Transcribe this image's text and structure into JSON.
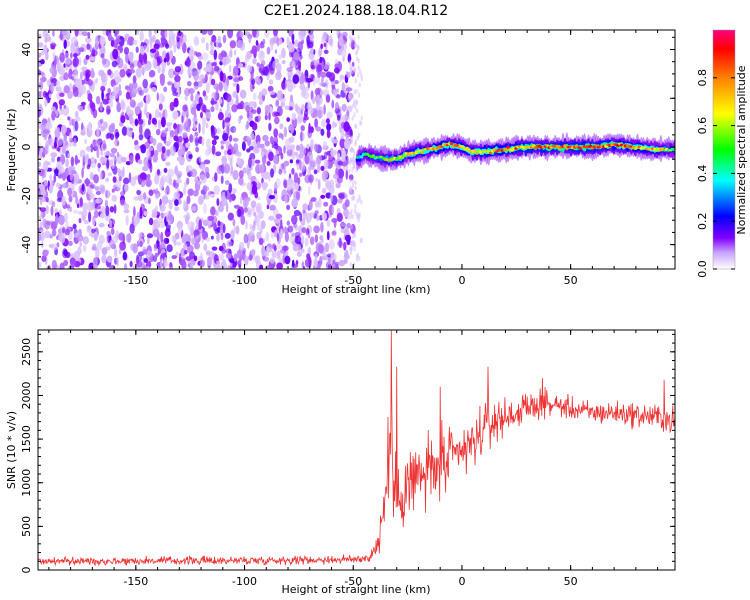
{
  "title": "C2E1.2024.188.18.04.R12",
  "chart_data": [
    {
      "type": "heatmap",
      "xlabel": "Height of straight line (km)",
      "ylabel": "Frequency (Hz)",
      "xlim": [
        -195,
        98
      ],
      "ylim": [
        -50,
        48
      ],
      "xticks": [
        -150,
        -100,
        -50,
        0,
        50
      ],
      "yticks": [
        -40,
        -20,
        0,
        20,
        40
      ],
      "colorbar": {
        "label": "Normalized spectral amplitude",
        "range": [
          0.0,
          1.0
        ],
        "ticks": [
          0.0,
          0.2,
          0.4,
          0.6,
          0.8
        ],
        "colormap": [
          "#ffffff",
          "#8000ff",
          "#0000ff",
          "#00ffff",
          "#00ff00",
          "#ffff00",
          "#ff8000",
          "#ff0000",
          "#ff0080"
        ]
      },
      "noise_region_x": [
        -195,
        -50
      ],
      "signal_track": {
        "x": [
          -48,
          -45,
          -40,
          -35,
          -30,
          -25,
          -20,
          -15,
          -10,
          -5,
          0,
          5,
          10,
          20,
          30,
          40,
          50,
          60,
          70,
          80,
          90,
          98
        ],
        "frequency": [
          -5,
          -3,
          -4,
          -5,
          -5,
          -3,
          -2,
          -1,
          0,
          1,
          0,
          -2,
          -2,
          -1,
          0,
          0,
          0,
          0,
          1,
          0,
          -1,
          -1
        ],
        "peak_amplitude": [
          0.45,
          0.5,
          0.55,
          0.7,
          0.75,
          0.75,
          0.8,
          0.85,
          0.9,
          0.85,
          0.85,
          0.85,
          0.85,
          0.9,
          0.95,
          0.95,
          0.95,
          0.95,
          0.9,
          0.85,
          0.8,
          0.5
        ]
      },
      "grid": false
    },
    {
      "type": "line",
      "name": "",
      "color": "#ee3333",
      "xlabel": "Height of straight line (km)",
      "ylabel": "SNR (10 * v/v)",
      "xlim": [
        -195,
        98
      ],
      "ylim": [
        0,
        2750
      ],
      "xticks": [
        -150,
        -100,
        -50,
        0,
        50
      ],
      "yticks": [
        0,
        500,
        1000,
        1500,
        2000,
        2500
      ],
      "series_envelope": {
        "x": [
          -195,
          -100,
          -50,
          -42,
          -38,
          -35,
          -33,
          -31,
          -30,
          -25,
          -20,
          -15,
          -10,
          -5,
          0,
          5,
          10,
          12,
          15,
          20,
          25,
          30,
          35,
          40,
          45,
          50,
          60,
          70,
          80,
          90,
          98
        ],
        "mean": [
          100,
          110,
          120,
          150,
          350,
          900,
          1500,
          900,
          800,
          1000,
          1050,
          1150,
          1150,
          1250,
          1350,
          1450,
          1600,
          1650,
          1700,
          1750,
          1800,
          1850,
          1900,
          1900,
          1880,
          1850,
          1800,
          1800,
          1780,
          1750,
          1700
        ],
        "noise": [
          40,
          45,
          45,
          60,
          150,
          400,
          600,
          400,
          300,
          450,
          450,
          400,
          400,
          350,
          300,
          250,
          250,
          250,
          200,
          180,
          170,
          150,
          140,
          130,
          120,
          120,
          120,
          120,
          130,
          140,
          150
        ]
      },
      "peaks": [
        {
          "x": -32.5,
          "y": 2750
        },
        {
          "x": -30.0,
          "y": 2330
        },
        {
          "x": -10.0,
          "y": 2100
        },
        {
          "x": 12.0,
          "y": 2330
        },
        {
          "x": 37.0,
          "y": 2200
        },
        {
          "x": 93.0,
          "y": 2180
        }
      ],
      "grid": false
    }
  ]
}
